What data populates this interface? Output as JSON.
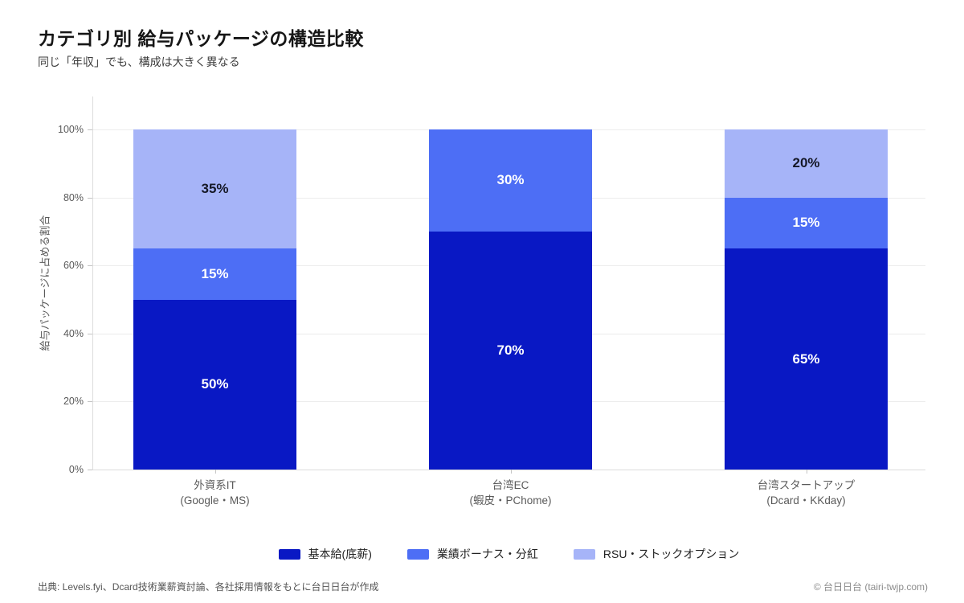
{
  "header": {
    "title": "カテゴリ別 給与パッケージの構造比較",
    "subtitle": "同じ「年収」でも、構成は大きく異なる"
  },
  "chart_data": {
    "type": "bar",
    "stacked": true,
    "title": "カテゴリ別 給与パッケージの構造比較",
    "ylabel": "給与パッケージに占める割合",
    "ylim": [
      0,
      100
    ],
    "ytick_step": 20,
    "ytick_suffix": "%",
    "value_suffix": "%",
    "grid": true,
    "legend_position": "bottom",
    "categories": [
      {
        "name": "外資系IT",
        "detail": "(Google・MS)"
      },
      {
        "name": "台湾EC",
        "detail": "(蝦皮・PChome)"
      },
      {
        "name": "台湾スタートアップ",
        "detail": "(Dcard・KKday)"
      }
    ],
    "series": [
      {
        "name": "基本給(底薪)",
        "color": "#0918c4",
        "label_color": "#ffffff",
        "values": [
          50,
          70,
          65
        ]
      },
      {
        "name": "業績ボーナス・分紅",
        "color": "#4d6ef5",
        "label_color": "#ffffff",
        "values": [
          15,
          30,
          15
        ]
      },
      {
        "name": "RSU・ストックオプション",
        "color": "#a6b4f8",
        "label_color": "#151827",
        "values": [
          35,
          0,
          20
        ]
      }
    ]
  },
  "footer": {
    "source": "出典: Levels.fyi、Dcard技術業薪資討論、各社採用情報をもとに台日日台が作成",
    "copyright": "© 台日日台 (tairi-twjp.com)"
  }
}
